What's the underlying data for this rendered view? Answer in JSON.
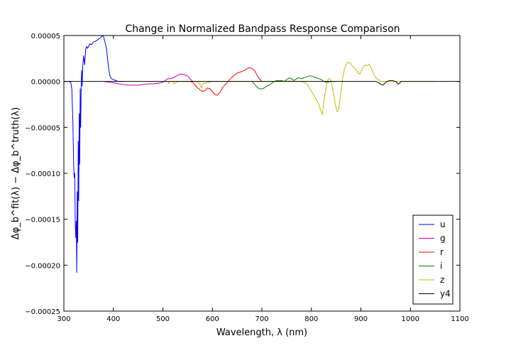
{
  "chart_data": {
    "type": "line",
    "title": "Change in Normalized Bandpass Response Comparison",
    "xlabel": "Wavelength, λ (nm)",
    "ylabel": "Δφ_b^fit(λ) − Δφ_b^truth(λ)",
    "xlim": [
      300,
      1100
    ],
    "ylim": [
      -0.00025,
      5e-05
    ],
    "x_ticks": [
      300,
      400,
      500,
      600,
      700,
      800,
      900,
      1000,
      1100
    ],
    "x_tick_labels": [
      "300",
      "400",
      "500",
      "600",
      "700",
      "800",
      "900",
      "1000",
      "1100"
    ],
    "y_ticks": [
      5e-05,
      0,
      -5e-05,
      -0.0001,
      -0.00015,
      -0.0002,
      -0.00025
    ],
    "y_tick_labels": [
      "0.00005",
      "0.00000",
      "−0.00005",
      "−0.00010",
      "−0.00015",
      "−0.00020",
      "−0.00025"
    ],
    "grid": false,
    "legend_position": "bottom-right",
    "series": [
      {
        "name": "u",
        "color": "#0000ff",
        "points": [
          [
            310,
            0
          ],
          [
            314,
            -1e-06
          ],
          [
            316,
            -8e-06
          ],
          [
            318,
            -4e-05
          ],
          [
            320,
            -9.5e-05
          ],
          [
            321,
            -0.000105
          ],
          [
            322,
            -0.0001
          ],
          [
            323,
            -0.000155
          ],
          [
            324,
            -0.00017
          ],
          [
            325,
            -0.000152
          ],
          [
            326,
            -0.000208
          ],
          [
            327,
            -0.00012
          ],
          [
            328,
            -0.000175
          ],
          [
            329,
            -6.5e-05
          ],
          [
            330,
            -0.00013
          ],
          [
            331,
            -3.5e-05
          ],
          [
            332,
            -9e-05
          ],
          [
            333,
            -8e-06
          ],
          [
            334,
            -5e-05
          ],
          [
            335,
            -3e-06
          ],
          [
            336,
            1.2e-05
          ],
          [
            337,
            -5e-06
          ],
          [
            338,
            1.6e-05
          ],
          [
            340,
            2.8e-05
          ],
          [
            342,
            1.8e-05
          ],
          [
            344,
            3.5e-05
          ],
          [
            346,
            3.8e-05
          ],
          [
            348,
            3.6e-05
          ],
          [
            352,
            4.1e-05
          ],
          [
            356,
            4e-05
          ],
          [
            360,
            4.3e-05
          ],
          [
            365,
            4.4e-05
          ],
          [
            370,
            4.6e-05
          ],
          [
            375,
            4.8e-05
          ],
          [
            378,
            5e-05
          ],
          [
            380,
            4.9e-05
          ],
          [
            383,
            4.3e-05
          ],
          [
            386,
            3.6e-05
          ],
          [
            390,
            1.6e-05
          ],
          [
            393,
            6e-06
          ],
          [
            396,
            3e-06
          ],
          [
            400,
            2e-06
          ],
          [
            405,
            1e-06
          ],
          [
            410,
            0
          ],
          [
            420,
            0
          ]
        ]
      },
      {
        "name": "g",
        "color": "#bf00bf",
        "points": [
          [
            380,
            0
          ],
          [
            395,
            -1e-06
          ],
          [
            405,
            -2e-06
          ],
          [
            415,
            -3e-06
          ],
          [
            430,
            -4e-06
          ],
          [
            450,
            -4e-06
          ],
          [
            465,
            -3e-06
          ],
          [
            480,
            -2.5e-06
          ],
          [
            490,
            -2e-06
          ],
          [
            500,
            -1e-06
          ],
          [
            505,
            1e-06
          ],
          [
            510,
            3e-06
          ],
          [
            515,
            3e-06
          ],
          [
            520,
            4e-06
          ],
          [
            525,
            5e-06
          ],
          [
            530,
            7e-06
          ],
          [
            535,
            8e-06
          ],
          [
            540,
            8e-06
          ],
          [
            545,
            7e-06
          ],
          [
            550,
            6e-06
          ],
          [
            555,
            3e-06
          ],
          [
            560,
            0
          ],
          [
            570,
            0
          ]
        ]
      },
      {
        "name": "r",
        "color": "#ff0000",
        "points": [
          [
            540,
            0
          ],
          [
            555,
            0
          ],
          [
            560,
            -1e-06
          ],
          [
            565,
            -4e-06
          ],
          [
            570,
            -7e-06
          ],
          [
            575,
            -9e-06
          ],
          [
            580,
            -1.1e-05
          ],
          [
            585,
            -1e-05
          ],
          [
            590,
            -7e-06
          ],
          [
            595,
            -8e-06
          ],
          [
            600,
            -1.1e-05
          ],
          [
            605,
            -1.4e-05
          ],
          [
            610,
            -1.5e-05
          ],
          [
            615,
            -1.2e-05
          ],
          [
            620,
            -7e-06
          ],
          [
            625,
            -4e-06
          ],
          [
            630,
            -1e-06
          ],
          [
            635,
            2e-06
          ],
          [
            640,
            5e-06
          ],
          [
            645,
            7e-06
          ],
          [
            650,
            9e-06
          ],
          [
            655,
            1e-05
          ],
          [
            660,
            1.1e-05
          ],
          [
            665,
            1.2e-05
          ],
          [
            670,
            1.4e-05
          ],
          [
            675,
            1.5e-05
          ],
          [
            680,
            1.4e-05
          ],
          [
            685,
            1.2e-05
          ],
          [
            690,
            7e-06
          ],
          [
            695,
            3e-06
          ],
          [
            700,
            0
          ]
        ]
      },
      {
        "name": "i",
        "color": "#008000",
        "points": [
          [
            680,
            0
          ],
          [
            685,
            -3e-06
          ],
          [
            690,
            -6e-06
          ],
          [
            695,
            -8e-06
          ],
          [
            700,
            -8e-06
          ],
          [
            705,
            -7e-06
          ],
          [
            710,
            -5e-06
          ],
          [
            715,
            -4e-06
          ],
          [
            720,
            -2e-06
          ],
          [
            725,
            0
          ],
          [
            730,
            1e-06
          ],
          [
            740,
            1e-06
          ],
          [
            745,
            0
          ],
          [
            750,
            2e-06
          ],
          [
            755,
            4e-06
          ],
          [
            760,
            3e-06
          ],
          [
            765,
            1e-06
          ],
          [
            770,
            3e-06
          ],
          [
            775,
            4e-06
          ],
          [
            780,
            3e-06
          ],
          [
            785,
            4e-06
          ],
          [
            790,
            5e-06
          ],
          [
            795,
            6e-06
          ],
          [
            800,
            6e-06
          ],
          [
            805,
            5e-06
          ],
          [
            810,
            4e-06
          ],
          [
            815,
            3e-06
          ],
          [
            820,
            2e-06
          ],
          [
            825,
            0
          ],
          [
            830,
            -1e-06
          ],
          [
            840,
            0
          ],
          [
            850,
            0
          ]
        ]
      },
      {
        "name": "z",
        "color": "#bfbf00",
        "points": [
          [
            500,
            0
          ],
          [
            510,
            0
          ],
          [
            512,
            -2.5e-06
          ],
          [
            515,
            0
          ],
          [
            520,
            0
          ],
          [
            522,
            -2.5e-06
          ],
          [
            530,
            0
          ],
          [
            560,
            0
          ],
          [
            570,
            0
          ],
          [
            575,
            -3e-06
          ],
          [
            578,
            -7e-06
          ],
          [
            580,
            -3e-06
          ],
          [
            585,
            -2e-06
          ],
          [
            590,
            -1e-06
          ],
          [
            600,
            0
          ],
          [
            640,
            0
          ],
          [
            650,
            0
          ],
          [
            670,
            0
          ],
          [
            700,
            0
          ],
          [
            720,
            0
          ],
          [
            740,
            0
          ],
          [
            755,
            5e-07
          ],
          [
            770,
            0
          ],
          [
            780,
            0
          ],
          [
            790,
            -2e-06
          ],
          [
            795,
            -6e-06
          ],
          [
            800,
            -1.1e-05
          ],
          [
            805,
            -1.5e-05
          ],
          [
            810,
            -2e-05
          ],
          [
            815,
            -2.5e-05
          ],
          [
            818,
            -3e-05
          ],
          [
            820,
            -3.3e-05
          ],
          [
            822,
            -3.6e-05
          ],
          [
            825,
            -2.2e-05
          ],
          [
            828,
            -1.2e-05
          ],
          [
            831,
            -3e-06
          ],
          [
            833,
            1e-06
          ],
          [
            835,
            3e-06
          ],
          [
            838,
            3e-06
          ],
          [
            840,
            0
          ],
          [
            843,
            -8e-06
          ],
          [
            846,
            -1.7e-05
          ],
          [
            849,
            -2.7e-05
          ],
          [
            852,
            -3.3e-05
          ],
          [
            855,
            -3.1e-05
          ],
          [
            858,
            -1.8e-05
          ],
          [
            861,
            -5e-06
          ],
          [
            864,
            6e-06
          ],
          [
            867,
            1.4e-05
          ],
          [
            870,
            1.8e-05
          ],
          [
            873,
            2.1e-05
          ],
          [
            876,
            2e-05
          ],
          [
            879,
            2e-05
          ],
          [
            882,
            1.7e-05
          ],
          [
            885,
            1.6e-05
          ],
          [
            888,
            1.4e-05
          ],
          [
            891,
            1.2e-05
          ],
          [
            895,
            9e-06
          ],
          [
            898,
            8e-06
          ],
          [
            901,
            1.2e-05
          ],
          [
            904,
            1.5e-05
          ],
          [
            907,
            1.7e-05
          ],
          [
            910,
            1.8e-05
          ],
          [
            913,
            1.7e-05
          ],
          [
            916,
            1.9e-05
          ],
          [
            919,
            1.7e-05
          ],
          [
            922,
            1.3e-05
          ],
          [
            926,
            8e-06
          ],
          [
            930,
            4e-06
          ],
          [
            935,
            2e-06
          ],
          [
            940,
            0
          ],
          [
            950,
            0
          ],
          [
            960,
            0
          ],
          [
            970,
            0
          ],
          [
            980,
            0
          ],
          [
            1000,
            0
          ],
          [
            1020,
            0
          ],
          [
            1030,
            0
          ],
          [
            1040,
            0
          ],
          [
            1050,
            0
          ]
        ]
      },
      {
        "name": "y4",
        "color": "#000000",
        "points": [
          [
            300,
            0
          ],
          [
            400,
            0
          ],
          [
            500,
            0
          ],
          [
            600,
            0
          ],
          [
            700,
            0
          ],
          [
            800,
            0
          ],
          [
            900,
            0
          ],
          [
            930,
            0
          ],
          [
            935,
            -1e-06
          ],
          [
            940,
            -3e-06
          ],
          [
            944,
            -4e-06
          ],
          [
            947,
            -3e-06
          ],
          [
            950,
            -1e-06
          ],
          [
            953,
            0
          ],
          [
            958,
            1e-06
          ],
          [
            965,
            1e-06
          ],
          [
            968,
            0
          ],
          [
            971,
            0
          ],
          [
            975,
            -3e-06
          ],
          [
            978,
            -2e-06
          ],
          [
            981,
            0
          ],
          [
            985,
            0
          ],
          [
            1000,
            0
          ],
          [
            1050,
            0
          ],
          [
            1100,
            0
          ]
        ]
      }
    ]
  }
}
